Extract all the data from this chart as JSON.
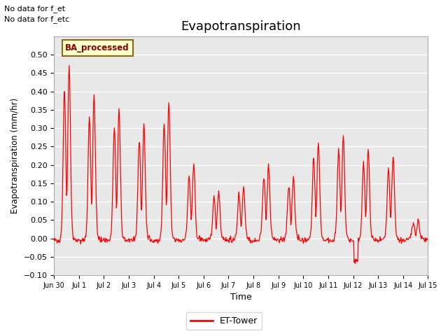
{
  "title": "Evapotranspiration",
  "ylabel": "Evapotranspiration (mm/hr)",
  "xlabel": "Time",
  "ylim": [
    -0.1,
    0.55
  ],
  "yticks": [
    -0.1,
    -0.05,
    0.0,
    0.05,
    0.1,
    0.15,
    0.2,
    0.25,
    0.3,
    0.35,
    0.4,
    0.45,
    0.5
  ],
  "line_color": "#ff0000",
  "bg_color": "#e8e8e8",
  "annotations": [
    "No data for f_et",
    "No data for f_etc"
  ],
  "legend_label": "ET-Tower",
  "ba_label": "BA_processed",
  "title_fontsize": 13,
  "daily_peaks": [
    0.47,
    0.39,
    0.35,
    0.31,
    0.37,
    0.2,
    0.13,
    0.14,
    0.2,
    0.17,
    0.26,
    0.28,
    0.24,
    0.22,
    0.05
  ],
  "tick_labels": [
    "Jun 30",
    "Jul 1",
    "Jul 2",
    "Jul 3",
    "Jul 4",
    "Jul 5",
    "Jul 6",
    "Jul 7",
    "Jul 8",
    "Jul 9",
    "Jul 10",
    "Jul 11",
    "Jul 12",
    "Jul 13",
    "Jul 14",
    "Jul 15"
  ]
}
